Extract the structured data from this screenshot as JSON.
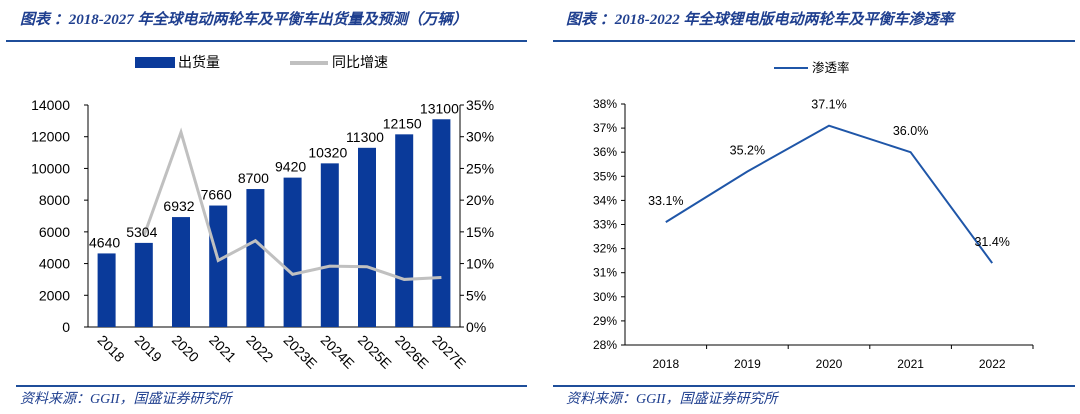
{
  "colors": {
    "bar": "#0a3a9a",
    "growth_line": "#c0c0c0",
    "penetration_line": "#1f56a8",
    "rule": "#1f4e9a",
    "text_blue": "#1f3f8f"
  },
  "chart_data": [
    {
      "type": "bar",
      "title": "图表  ：2018-2027 年全球电动两轮车及平衡车出货量及预测（万辆）",
      "categories": [
        "2018",
        "2019",
        "2020",
        "2021",
        "2022",
        "2023E",
        "2024E",
        "2025E",
        "2026E",
        "2027E"
      ],
      "series": [
        {
          "name": "出货量",
          "type": "bar",
          "axis": "left",
          "values": [
            4640,
            5304,
            6932,
            7660,
            8700,
            9420,
            10320,
            11300,
            12150,
            13100
          ],
          "data_labels": [
            "4640",
            "5304",
            "6932",
            "7660",
            "8700",
            "9420",
            "10320",
            "11300",
            "12150",
            "13100"
          ]
        },
        {
          "name": "同比增速",
          "type": "line",
          "axis": "right",
          "values": [
            null,
            14.3,
            30.7,
            10.5,
            13.6,
            8.3,
            9.6,
            9.5,
            7.5,
            7.8
          ]
        }
      ],
      "ylim": [
        0,
        14000
      ],
      "yticks": [
        "0",
        "2000",
        "4000",
        "6000",
        "8000",
        "10000",
        "12000",
        "14000"
      ],
      "y2lim": [
        0,
        35
      ],
      "y2ticks": [
        "0%",
        "5%",
        "10%",
        "15%",
        "20%",
        "25%",
        "30%",
        "35%"
      ],
      "legend": "top",
      "grid": false,
      "source": "资料来源：GGII，国盛证券研究所"
    },
    {
      "type": "line",
      "title": "图表  ：2018-2022 年全球锂电版电动两轮车及平衡车渗透率",
      "categories": [
        "2018",
        "2019",
        "2020",
        "2021",
        "2022"
      ],
      "series": [
        {
          "name": "渗透率",
          "values": [
            33.1,
            35.2,
            37.1,
            36.0,
            31.4
          ],
          "data_labels": [
            "33.1%",
            "35.2%",
            "37.1%",
            "36.0%",
            "31.4%"
          ]
        }
      ],
      "ylim": [
        28,
        38
      ],
      "yticks": [
        "28%",
        "29%",
        "30%",
        "31%",
        "32%",
        "33%",
        "34%",
        "35%",
        "36%",
        "37%",
        "38%"
      ],
      "legend": "top",
      "grid": false,
      "source": "资料来源：GGII，国盛证券研究所"
    }
  ]
}
